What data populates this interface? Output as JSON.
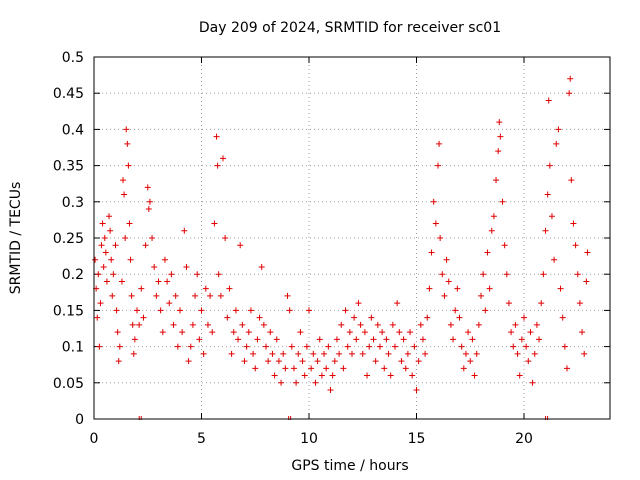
{
  "chart_data": {
    "type": "scatter",
    "title": "Day 209 of 2024, SRMTID for receiver sc01",
    "xlabel": "GPS time / hours",
    "ylabel": "SRMTID / TECUs",
    "xlim": [
      0,
      24
    ],
    "ylim": [
      0,
      0.5
    ],
    "x_ticks": [
      0,
      5,
      10,
      15,
      20
    ],
    "x_tick_labels": [
      "0",
      "5",
      "10",
      "15",
      "20"
    ],
    "y_ticks": [
      0,
      0.05,
      0.1,
      0.15,
      0.2,
      0.25,
      0.3,
      0.35,
      0.4,
      0.45,
      0.5
    ],
    "y_tick_labels": [
      "0",
      "0.05",
      "0.1",
      "0.15",
      "0.2",
      "0.25",
      "0.3",
      "0.35",
      "0.4",
      "0.45",
      "0.5"
    ],
    "grid": true,
    "marker": "+",
    "series_color": "#e00000",
    "series": [
      {
        "name": "SRMTID",
        "points": [
          [
            0.05,
            0.22
          ],
          [
            0.1,
            0.18
          ],
          [
            0.15,
            0.14
          ],
          [
            0.2,
            0.2
          ],
          [
            0.25,
            0.1
          ],
          [
            0.3,
            0.16
          ],
          [
            0.35,
            0.24
          ],
          [
            0.4,
            0.27
          ],
          [
            0.45,
            0.21
          ],
          [
            0.5,
            0.25
          ],
          [
            0.55,
            0.23
          ],
          [
            0.6,
            0.19
          ],
          [
            0.7,
            0.28
          ],
          [
            0.75,
            0.26
          ],
          [
            0.8,
            0.22
          ],
          [
            0.85,
            0.17
          ],
          [
            0.9,
            0.2
          ],
          [
            1.0,
            0.24
          ],
          [
            1.05,
            0.15
          ],
          [
            1.1,
            0.12
          ],
          [
            1.15,
            0.08
          ],
          [
            1.2,
            0.1
          ],
          [
            1.3,
            0.19
          ],
          [
            1.35,
            0.33
          ],
          [
            1.4,
            0.31
          ],
          [
            1.45,
            0.25
          ],
          [
            1.5,
            0.4
          ],
          [
            1.55,
            0.38
          ],
          [
            1.6,
            0.35
          ],
          [
            1.65,
            0.27
          ],
          [
            1.7,
            0.22
          ],
          [
            1.75,
            0.17
          ],
          [
            1.8,
            0.13
          ],
          [
            1.85,
            0.09
          ],
          [
            1.9,
            0.11
          ],
          [
            2.0,
            0.15
          ],
          [
            2.1,
            0.13
          ],
          [
            2.2,
            0.18
          ],
          [
            2.3,
            0.14
          ],
          [
            2.4,
            0.24
          ],
          [
            2.5,
            0.32
          ],
          [
            2.55,
            0.29
          ],
          [
            2.6,
            0.3
          ],
          [
            2.7,
            0.25
          ],
          [
            2.8,
            0.21
          ],
          [
            2.9,
            0.17
          ],
          [
            3.0,
            0.19
          ],
          [
            3.1,
            0.15
          ],
          [
            3.2,
            0.12
          ],
          [
            3.3,
            0.22
          ],
          [
            3.4,
            0.19
          ],
          [
            3.5,
            0.16
          ],
          [
            3.6,
            0.2
          ],
          [
            3.7,
            0.13
          ],
          [
            3.8,
            0.17
          ],
          [
            3.9,
            0.1
          ],
          [
            4.0,
            0.15
          ],
          [
            4.1,
            0.12
          ],
          [
            4.2,
            0.26
          ],
          [
            4.3,
            0.21
          ],
          [
            4.4,
            0.08
          ],
          [
            4.5,
            0.1
          ],
          [
            4.6,
            0.13
          ],
          [
            4.7,
            0.17
          ],
          [
            4.8,
            0.2
          ],
          [
            4.9,
            0.11
          ],
          [
            5.0,
            0.15
          ],
          [
            5.1,
            0.09
          ],
          [
            5.2,
            0.18
          ],
          [
            5.3,
            0.13
          ],
          [
            5.4,
            0.17
          ],
          [
            5.5,
            0.12
          ],
          [
            5.6,
            0.27
          ],
          [
            5.7,
            0.39
          ],
          [
            5.75,
            0.35
          ],
          [
            5.8,
            0.2
          ],
          [
            5.9,
            0.17
          ],
          [
            6.0,
            0.36
          ],
          [
            6.1,
            0.25
          ],
          [
            6.2,
            0.14
          ],
          [
            6.3,
            0.18
          ],
          [
            6.4,
            0.09
          ],
          [
            6.5,
            0.12
          ],
          [
            6.6,
            0.15
          ],
          [
            6.7,
            0.11
          ],
          [
            6.8,
            0.24
          ],
          [
            6.9,
            0.13
          ],
          [
            7.0,
            0.08
          ],
          [
            7.1,
            0.1
          ],
          [
            7.2,
            0.12
          ],
          [
            7.3,
            0.15
          ],
          [
            7.4,
            0.09
          ],
          [
            7.5,
            0.07
          ],
          [
            7.6,
            0.11
          ],
          [
            7.7,
            0.14
          ],
          [
            7.8,
            0.21
          ],
          [
            7.9,
            0.13
          ],
          [
            8.0,
            0.1
          ],
          [
            8.1,
            0.08
          ],
          [
            8.2,
            0.12
          ],
          [
            8.3,
            0.09
          ],
          [
            8.4,
            0.06
          ],
          [
            8.5,
            0.11
          ],
          [
            8.6,
            0.08
          ],
          [
            8.7,
            0.05
          ],
          [
            8.8,
            0.09
          ],
          [
            8.9,
            0.07
          ],
          [
            9.0,
            0.17
          ],
          [
            9.1,
            0.15
          ],
          [
            9.2,
            0.1
          ],
          [
            9.3,
            0.07
          ],
          [
            9.4,
            0.05
          ],
          [
            9.5,
            0.09
          ],
          [
            9.6,
            0.12
          ],
          [
            9.7,
            0.08
          ],
          [
            9.8,
            0.06
          ],
          [
            9.9,
            0.1
          ],
          [
            10.0,
            0.15
          ],
          [
            10.1,
            0.07
          ],
          [
            10.2,
            0.09
          ],
          [
            10.3,
            0.05
          ],
          [
            10.4,
            0.08
          ],
          [
            10.5,
            0.11
          ],
          [
            10.6,
            0.06
          ],
          [
            10.7,
            0.09
          ],
          [
            10.8,
            0.07
          ],
          [
            10.9,
            0.1
          ],
          [
            11.0,
            0.04
          ],
          [
            11.1,
            0.06
          ],
          [
            11.2,
            0.08
          ],
          [
            11.3,
            0.11
          ],
          [
            11.4,
            0.09
          ],
          [
            11.5,
            0.13
          ],
          [
            11.6,
            0.07
          ],
          [
            11.7,
            0.15
          ],
          [
            11.8,
            0.1
          ],
          [
            11.9,
            0.12
          ],
          [
            12.0,
            0.09
          ],
          [
            12.1,
            0.14
          ],
          [
            12.2,
            0.11
          ],
          [
            12.3,
            0.16
          ],
          [
            12.4,
            0.13
          ],
          [
            12.5,
            0.09
          ],
          [
            12.6,
            0.12
          ],
          [
            12.7,
            0.06
          ],
          [
            12.8,
            0.1
          ],
          [
            12.9,
            0.14
          ],
          [
            13.0,
            0.11
          ],
          [
            13.1,
            0.08
          ],
          [
            13.2,
            0.13
          ],
          [
            13.3,
            0.1
          ],
          [
            13.4,
            0.12
          ],
          [
            13.5,
            0.07
          ],
          [
            13.6,
            0.11
          ],
          [
            13.7,
            0.09
          ],
          [
            13.8,
            0.06
          ],
          [
            13.9,
            0.13
          ],
          [
            14.0,
            0.1
          ],
          [
            14.1,
            0.16
          ],
          [
            14.2,
            0.12
          ],
          [
            14.3,
            0.08
          ],
          [
            14.4,
            0.11
          ],
          [
            14.5,
            0.07
          ],
          [
            14.6,
            0.09
          ],
          [
            14.7,
            0.12
          ],
          [
            14.8,
            0.06
          ],
          [
            14.9,
            0.1
          ],
          [
            15.0,
            0.04
          ],
          [
            15.1,
            0.08
          ],
          [
            15.2,
            0.13
          ],
          [
            15.3,
            0.11
          ],
          [
            15.4,
            0.09
          ],
          [
            15.5,
            0.14
          ],
          [
            15.6,
            0.18
          ],
          [
            15.7,
            0.23
          ],
          [
            15.8,
            0.3
          ],
          [
            15.9,
            0.27
          ],
          [
            16.0,
            0.35
          ],
          [
            16.05,
            0.38
          ],
          [
            16.1,
            0.25
          ],
          [
            16.2,
            0.2
          ],
          [
            16.3,
            0.17
          ],
          [
            16.4,
            0.22
          ],
          [
            16.5,
            0.19
          ],
          [
            16.6,
            0.13
          ],
          [
            16.7,
            0.11
          ],
          [
            16.8,
            0.15
          ],
          [
            16.9,
            0.18
          ],
          [
            17.0,
            0.14
          ],
          [
            17.1,
            0.1
          ],
          [
            17.2,
            0.07
          ],
          [
            17.3,
            0.09
          ],
          [
            17.4,
            0.12
          ],
          [
            17.5,
            0.08
          ],
          [
            17.6,
            0.11
          ],
          [
            17.7,
            0.06
          ],
          [
            17.8,
            0.09
          ],
          [
            17.9,
            0.13
          ],
          [
            18.0,
            0.17
          ],
          [
            18.1,
            0.2
          ],
          [
            18.2,
            0.15
          ],
          [
            18.3,
            0.23
          ],
          [
            18.4,
            0.18
          ],
          [
            18.5,
            0.26
          ],
          [
            18.6,
            0.28
          ],
          [
            18.7,
            0.33
          ],
          [
            18.8,
            0.37
          ],
          [
            18.85,
            0.41
          ],
          [
            18.9,
            0.39
          ],
          [
            19.0,
            0.3
          ],
          [
            19.1,
            0.24
          ],
          [
            19.2,
            0.2
          ],
          [
            19.3,
            0.16
          ],
          [
            19.4,
            0.12
          ],
          [
            19.5,
            0.1
          ],
          [
            19.6,
            0.13
          ],
          [
            19.7,
            0.09
          ],
          [
            19.8,
            0.06
          ],
          [
            19.9,
            0.11
          ],
          [
            20.0,
            0.14
          ],
          [
            20.1,
            0.1
          ],
          [
            20.2,
            0.08
          ],
          [
            20.3,
            0.12
          ],
          [
            20.4,
            0.05
          ],
          [
            20.5,
            0.09
          ],
          [
            20.6,
            0.13
          ],
          [
            20.7,
            0.11
          ],
          [
            20.8,
            0.16
          ],
          [
            20.9,
            0.2
          ],
          [
            21.0,
            0.26
          ],
          [
            21.1,
            0.31
          ],
          [
            21.15,
            0.44
          ],
          [
            21.2,
            0.35
          ],
          [
            21.3,
            0.28
          ],
          [
            21.4,
            0.22
          ],
          [
            21.5,
            0.38
          ],
          [
            21.6,
            0.4
          ],
          [
            21.7,
            0.18
          ],
          [
            21.8,
            0.14
          ],
          [
            21.9,
            0.1
          ],
          [
            22.0,
            0.07
          ],
          [
            22.1,
            0.45
          ],
          [
            22.15,
            0.47
          ],
          [
            22.2,
            0.33
          ],
          [
            22.3,
            0.27
          ],
          [
            22.4,
            0.24
          ],
          [
            22.5,
            0.2
          ],
          [
            22.6,
            0.16
          ],
          [
            22.7,
            0.12
          ],
          [
            22.8,
            0.09
          ],
          [
            22.9,
            0.19
          ],
          [
            22.95,
            0.23
          ]
        ]
      }
    ],
    "x_axis_markers": [
      2.15,
      9.1,
      21.05
    ]
  }
}
